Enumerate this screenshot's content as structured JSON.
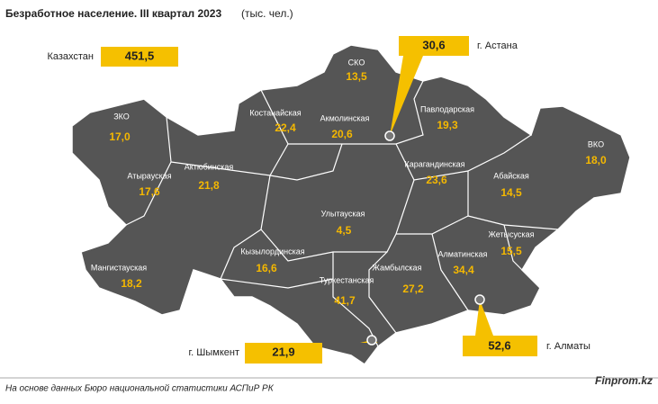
{
  "title": "Безработное население. III квартал 2023",
  "unit": "(тыс. чел.)",
  "total": {
    "name": "Казахстан",
    "value": "451,5"
  },
  "cities": [
    {
      "name": "г. Астана",
      "value": "30,6"
    },
    {
      "name": "г. Шымкент",
      "value": "21,9"
    },
    {
      "name": "г. Алматы",
      "value": "52,6"
    }
  ],
  "regions": [
    {
      "name": "СКО",
      "value": "13,5"
    },
    {
      "name": "ЗКО",
      "value": "17,0"
    },
    {
      "name": "Костанайская",
      "value": "22,4"
    },
    {
      "name": "Акмолинская",
      "value": "20,6"
    },
    {
      "name": "Павлодарская",
      "value": "19,3"
    },
    {
      "name": "ВКО",
      "value": "18,0"
    },
    {
      "name": "Атырауская",
      "value": "17,6"
    },
    {
      "name": "Актюбинская",
      "value": "21,8"
    },
    {
      "name": "Карагандинская",
      "value": "23,6"
    },
    {
      "name": "Абайская",
      "value": "14,5"
    },
    {
      "name": "Улытауская",
      "value": "4,5"
    },
    {
      "name": "Жетысуская",
      "value": "15,5"
    },
    {
      "name": "Кызылординская",
      "value": "16,6"
    },
    {
      "name": "Алматинская",
      "value": "34,4"
    },
    {
      "name": "Мангистауская",
      "value": "18,2"
    },
    {
      "name": "Жамбылская",
      "value": "27,2"
    },
    {
      "name": "Туркестанская",
      "value": "41,7"
    }
  ],
  "footer": {
    "source": "На основе данных Бюро национальной статистики АСПиР РК",
    "brand": "Finprom.kz"
  }
}
